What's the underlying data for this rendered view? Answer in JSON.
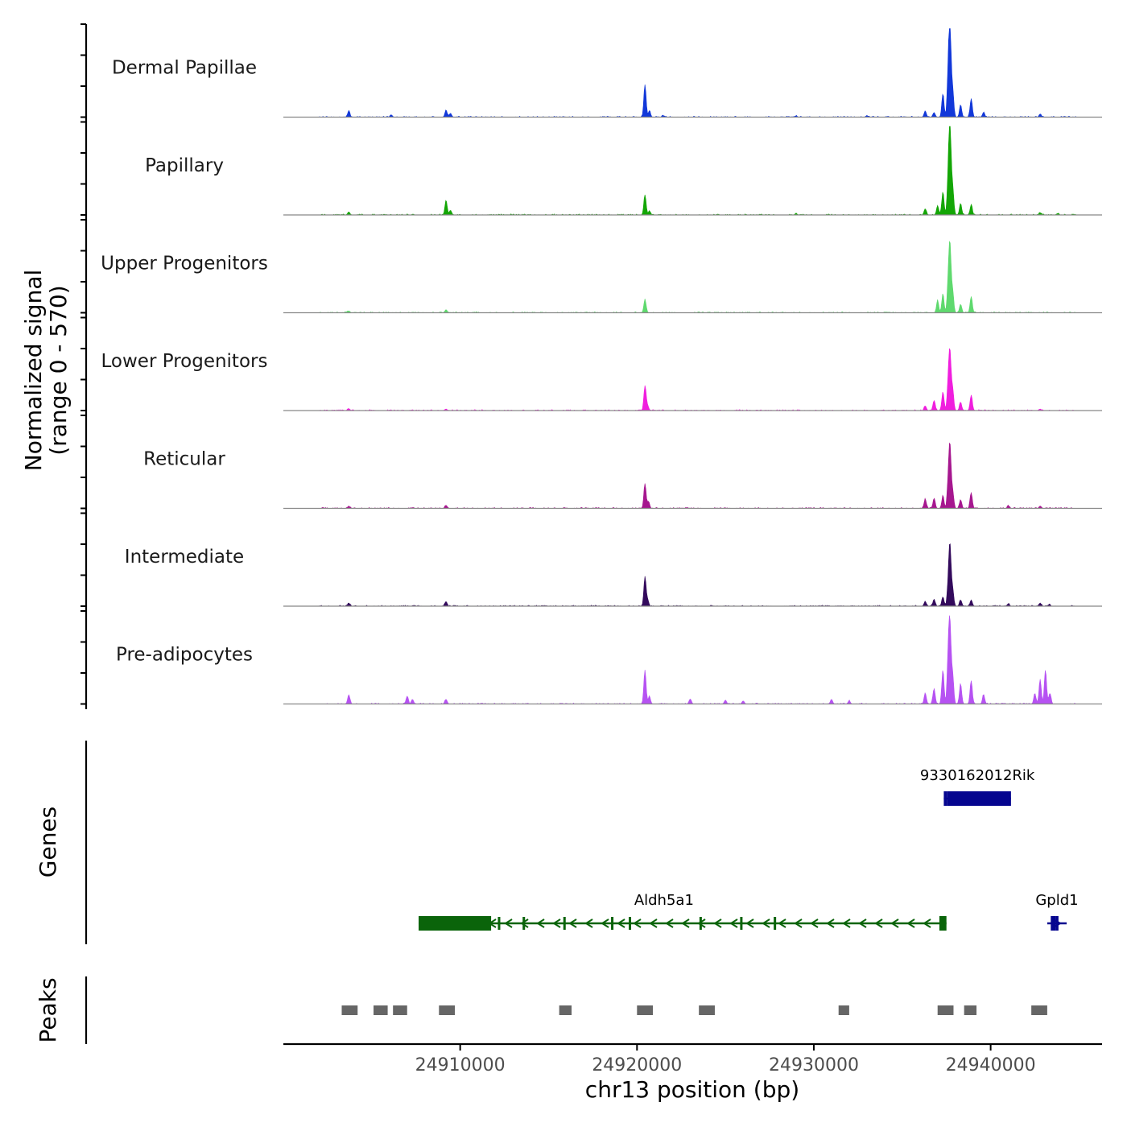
{
  "chart_data": {
    "type": "area",
    "title": "",
    "xlabel": "chr13 position (bp)",
    "ylabel": "Normalized signal\n(range 0 - 570)",
    "ylabel_lines": [
      "Normalized signal",
      "(range 0 - 570)"
    ],
    "signal_range": [
      0,
      570
    ],
    "xlim": [
      24900000,
      24946300
    ],
    "x_ticks": [
      24910000,
      24920000,
      24930000,
      24940000
    ],
    "x_tick_labels": [
      "24910000",
      "24920000",
      "24930000",
      "24940000"
    ],
    "track_panel_label_genes": "Genes",
    "track_panel_label_peaks": "Peaks",
    "series": [
      {
        "name": "Dermal Papillae",
        "color": "#1238d9",
        "peaks": [
          [
            24903700,
            40
          ],
          [
            24906100,
            15
          ],
          [
            24909200,
            45
          ],
          [
            24909450,
            25
          ],
          [
            24920450,
            210
          ],
          [
            24920700,
            40
          ],
          [
            24921500,
            10
          ],
          [
            24929000,
            8
          ],
          [
            24933000,
            8
          ],
          [
            24936300,
            40
          ],
          [
            24936800,
            30
          ],
          [
            24937300,
            150
          ],
          [
            24937600,
            250
          ],
          [
            24937700,
            560
          ],
          [
            24937850,
            180
          ],
          [
            24938300,
            80
          ],
          [
            24938900,
            120
          ],
          [
            24939600,
            30
          ],
          [
            24942800,
            20
          ]
        ]
      },
      {
        "name": "Papillary",
        "color": "#14a606",
        "peaks": [
          [
            24903700,
            20
          ],
          [
            24909200,
            95
          ],
          [
            24909450,
            30
          ],
          [
            24920450,
            130
          ],
          [
            24920700,
            25
          ],
          [
            24929000,
            8
          ],
          [
            24936300,
            40
          ],
          [
            24937000,
            60
          ],
          [
            24937300,
            150
          ],
          [
            24937600,
            210
          ],
          [
            24937700,
            560
          ],
          [
            24937850,
            180
          ],
          [
            24938300,
            75
          ],
          [
            24938900,
            65
          ],
          [
            24942800,
            15
          ],
          [
            24943800,
            10
          ]
        ]
      },
      {
        "name": "Upper Progenitors",
        "color": "#5fd96e",
        "peaks": [
          [
            24903700,
            12
          ],
          [
            24909200,
            20
          ],
          [
            24920450,
            85
          ],
          [
            24937000,
            80
          ],
          [
            24937300,
            120
          ],
          [
            24937600,
            170
          ],
          [
            24937700,
            410
          ],
          [
            24937850,
            140
          ],
          [
            24938300,
            55
          ],
          [
            24938900,
            105
          ]
        ]
      },
      {
        "name": "Lower Progenitors",
        "color": "#f01ede",
        "peaks": [
          [
            24903700,
            12
          ],
          [
            24909200,
            10
          ],
          [
            24920450,
            160
          ],
          [
            24920600,
            30
          ],
          [
            24936300,
            30
          ],
          [
            24936800,
            65
          ],
          [
            24937300,
            120
          ],
          [
            24937600,
            160
          ],
          [
            24937700,
            350
          ],
          [
            24937850,
            140
          ],
          [
            24938300,
            55
          ],
          [
            24938900,
            100
          ],
          [
            24942800,
            10
          ]
        ]
      },
      {
        "name": "Reticular",
        "color": "#a6178f",
        "peaks": [
          [
            24903700,
            15
          ],
          [
            24909200,
            20
          ],
          [
            24920450,
            160
          ],
          [
            24920650,
            45
          ],
          [
            24936300,
            60
          ],
          [
            24936800,
            65
          ],
          [
            24937300,
            80
          ],
          [
            24937600,
            150
          ],
          [
            24937700,
            380
          ],
          [
            24937850,
            110
          ],
          [
            24938300,
            55
          ],
          [
            24938900,
            100
          ],
          [
            24941000,
            15
          ],
          [
            24942800,
            15
          ]
        ]
      },
      {
        "name": "Intermediate",
        "color": "#330a5c",
        "peaks": [
          [
            24903700,
            20
          ],
          [
            24909200,
            30
          ],
          [
            24920450,
            190
          ],
          [
            24920600,
            40
          ],
          [
            24936300,
            30
          ],
          [
            24936800,
            45
          ],
          [
            24937300,
            60
          ],
          [
            24937600,
            120
          ],
          [
            24937700,
            370
          ],
          [
            24937850,
            110
          ],
          [
            24938300,
            40
          ],
          [
            24938900,
            40
          ],
          [
            24941000,
            15
          ],
          [
            24942800,
            20
          ],
          [
            24943300,
            10
          ]
        ]
      },
      {
        "name": "Pre-adipocytes",
        "color": "#b652f2",
        "peaks": [
          [
            24903700,
            60
          ],
          [
            24907000,
            50
          ],
          [
            24907300,
            30
          ],
          [
            24909200,
            30
          ],
          [
            24920450,
            220
          ],
          [
            24920700,
            50
          ],
          [
            24923000,
            30
          ],
          [
            24925000,
            25
          ],
          [
            24926000,
            20
          ],
          [
            24931000,
            30
          ],
          [
            24932000,
            20
          ],
          [
            24936300,
            70
          ],
          [
            24936800,
            100
          ],
          [
            24937300,
            220
          ],
          [
            24937600,
            280
          ],
          [
            24937700,
            470
          ],
          [
            24937850,
            190
          ],
          [
            24938300,
            130
          ],
          [
            24938900,
            150
          ],
          [
            24939600,
            60
          ],
          [
            24942500,
            65
          ],
          [
            24942800,
            160
          ],
          [
            24943100,
            220
          ],
          [
            24943350,
            70
          ]
        ]
      }
    ],
    "genes": [
      {
        "name": "9330162012Rik",
        "row": 0,
        "color": "#05058f",
        "start": 24937350,
        "end": 24941150,
        "strand": "-",
        "utr": [
          24937350,
          24937550
        ],
        "cds": [
          24937550,
          24941150
        ]
      },
      {
        "name": "Aldh5a1",
        "row": 1,
        "color": "#0a640a",
        "start": 24907650,
        "end": 24937500,
        "strand": "-",
        "utr": [
          24907650,
          24911750
        ],
        "cds": [
          24937100,
          24937500
        ],
        "exons": [
          24912200,
          24913600,
          24915900,
          24918600,
          24919600,
          24923600,
          24925900,
          24927800
        ]
      },
      {
        "name": "Gpld1",
        "row": 1,
        "color": "#05058f",
        "start": 24943200,
        "end": 24944300,
        "strand": "+",
        "utr": [
          24943400,
          24943700
        ],
        "cds": [
          24943700,
          24943750
        ]
      }
    ],
    "peaks_track": [
      [
        24903300,
        24904200
      ],
      [
        24905100,
        24905900
      ],
      [
        24906200,
        24907000
      ],
      [
        24908800,
        24909700
      ],
      [
        24915600,
        24916300
      ],
      [
        24920000,
        24920900
      ],
      [
        24923500,
        24924400
      ],
      [
        24931400,
        24932000
      ],
      [
        24937000,
        24937900
      ],
      [
        24938500,
        24939200
      ],
      [
        24942300,
        24943200
      ]
    ]
  },
  "colors": {
    "axis": "#000000",
    "baseline": "#888888",
    "peak_box": "#666666",
    "tick_label": "#4d4d4d"
  }
}
